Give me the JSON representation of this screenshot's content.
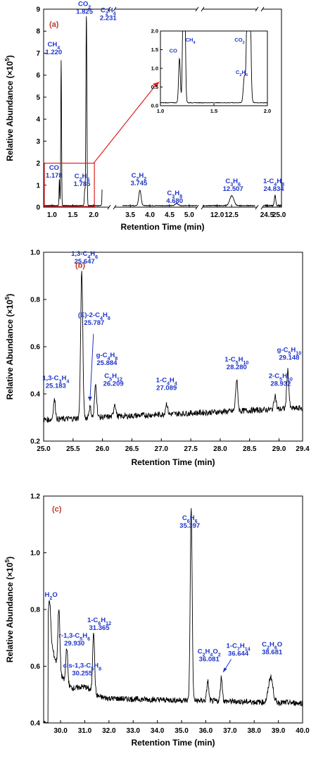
{
  "chart_data": [
    {
      "panel": "(a)",
      "type": "line",
      "xlabel": "Retention Time (min)",
      "ylabel": "Relative Abundance (×10⁵)",
      "ylim": [
        0,
        9
      ],
      "yticks": [
        "0",
        "1",
        "2",
        "3",
        "4",
        "5",
        "6",
        "7",
        "8",
        "9"
      ],
      "x_segments": [
        {
          "range": [
            0.8,
            2.2
          ],
          "ticks": [
            "1.0",
            "1.5",
            "2.0"
          ]
        },
        {
          "range": [
            3.3,
            5.2
          ],
          "ticks": [
            "3.5",
            "4.0",
            "4.5",
            "5.0"
          ]
        },
        {
          "range": [
            11.5,
            13.3
          ],
          "ticks": [
            "12.0",
            "12.5"
          ]
        },
        {
          "range": [
            24.4,
            25.1
          ],
          "ticks": [
            "24.5",
            "25.0"
          ]
        }
      ],
      "peaks": [
        {
          "x": 1.178,
          "y": 1.2,
          "formula": "CO",
          "time": "1.178"
        },
        {
          "x": 1.22,
          "y": 6.6,
          "formula": "CH₄",
          "time": "1.220"
        },
        {
          "x": 1.785,
          "y": 0.7,
          "formula": "C₂H₆",
          "time": "1.785"
        },
        {
          "x": 1.825,
          "y": 8.7,
          "formula": "CO₂",
          "time": "1.825"
        },
        {
          "x": 2.231,
          "y": 8.6,
          "formula": "C₂H₄",
          "time": "2.231"
        },
        {
          "x": 3.745,
          "y": 0.7,
          "formula": "C₂H₂",
          "time": "3.745"
        },
        {
          "x": 4.68,
          "y": 0.1,
          "formula": "C₃H₈",
          "time": "4.680"
        },
        {
          "x": 12.507,
          "y": 0.45,
          "formula": "C₃H₆",
          "time": "12.507"
        },
        {
          "x": 24.834,
          "y": 0.45,
          "formula": "1-C₄H₈",
          "time": "24.834"
        }
      ],
      "inset": {
        "xlim": [
          1.0,
          2.0
        ],
        "ylim": [
          0,
          2.0
        ],
        "xticks": [
          "1.0",
          "1.5",
          "2.0"
        ],
        "yticks": [
          "0.0",
          "0.5",
          "1.0",
          "1.5",
          "2.0"
        ],
        "labels": [
          "CO",
          "CH₄",
          "CO₂",
          "C₂H₆"
        ]
      }
    },
    {
      "panel": "(b)",
      "type": "line",
      "xlabel": "Retention Time (min)",
      "ylabel": "Relative Abundance (×10⁵)",
      "xlim": [
        25.0,
        29.4
      ],
      "ylim": [
        0.2,
        1.0
      ],
      "xticks": [
        "25.0",
        "25.5",
        "26.0",
        "26.5",
        "27.0",
        "27.5",
        "28.0",
        "28.5",
        "29.0",
        "29.4"
      ],
      "yticks": [
        "0.2",
        "0.4",
        "0.6",
        "0.8",
        "1.0"
      ],
      "peaks": [
        {
          "x": 25.183,
          "y": 0.375,
          "formula": "1,3-C₃H₄",
          "time": "25.183"
        },
        {
          "x": 25.647,
          "y": 0.92,
          "formula": "1,3-C₄H₆",
          "time": "25.647"
        },
        {
          "x": 25.787,
          "y": 0.345,
          "formula": "(E)-2-C₄H₈",
          "time": "25.787"
        },
        {
          "x": 25.884,
          "y": 0.44,
          "formula": "g-C₄H₈",
          "time": "25.884"
        },
        {
          "x": 26.209,
          "y": 0.36,
          "formula": "C₅H₁₂",
          "time": "26.209"
        },
        {
          "x": 27.089,
          "y": 0.36,
          "formula": "1-C₄H₄",
          "time": "27.089"
        },
        {
          "x": 28.28,
          "y": 0.46,
          "formula": "1-C₅H₁₀",
          "time": "28.280"
        },
        {
          "x": 28.932,
          "y": 0.395,
          "formula": "2-C₅H₁₀",
          "time": "28.932"
        },
        {
          "x": 29.148,
          "y": 0.5,
          "formula": "g-C₅H₁₀",
          "time": "29.148"
        }
      ]
    },
    {
      "panel": "(c)",
      "type": "line",
      "xlabel": "Retention Time (min)",
      "ylabel": "Relative Abundance (×10⁵)",
      "xlim": [
        29.3,
        40.0
      ],
      "ylim": [
        0.4,
        1.2
      ],
      "xticks": [
        "30.0",
        "31.0",
        "32.0",
        "33.0",
        "34.0",
        "35.0",
        "36.0",
        "37.0",
        "38.0",
        "39.0",
        "40.0"
      ],
      "yticks": [
        "0.4",
        "0.6",
        "0.8",
        "1.0",
        "1.2"
      ],
      "peaks": [
        {
          "x": 29.55,
          "y": 0.83,
          "formula": "H₂O",
          "time": ""
        },
        {
          "x": 29.93,
          "y": 0.72,
          "formula": "r-1,3-C₅H₆",
          "time": "29.930"
        },
        {
          "x": 30.255,
          "y": 0.63,
          "formula": "cis-1,3-C₅H₈",
          "time": "30.255"
        },
        {
          "x": 31.365,
          "y": 0.72,
          "formula": "1-C₆H₁₂",
          "time": "31.365"
        },
        {
          "x": 35.397,
          "y": 1.18,
          "formula": "C₆H₆",
          "time": "35.397"
        },
        {
          "x": 36.081,
          "y": 0.57,
          "formula": "C₂H₄O₂",
          "time": "36.081"
        },
        {
          "x": 36.644,
          "y": 0.585,
          "formula": "1-C₇H₁₄",
          "time": "36.644"
        },
        {
          "x": 38.681,
          "y": 0.59,
          "formula": "C₂H₆O",
          "time": "38.681"
        }
      ]
    }
  ]
}
